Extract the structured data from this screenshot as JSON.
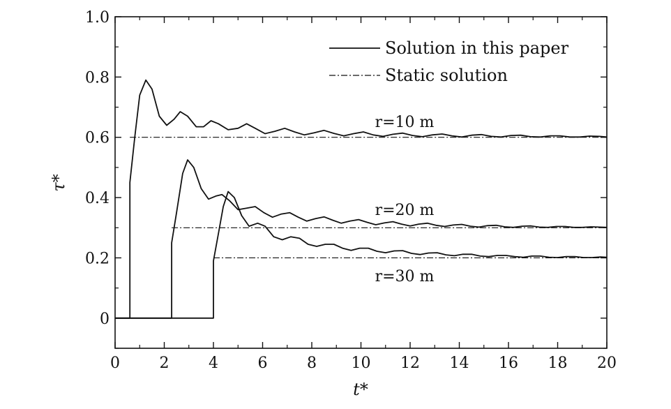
{
  "chart_data": {
    "type": "line",
    "title": "",
    "xlabel": "t*",
    "ylabel": "τ*",
    "xlim": [
      0,
      20
    ],
    "ylim": [
      -0.1,
      1.0
    ],
    "xticks": [
      "0",
      "2",
      "4",
      "6",
      "8",
      "10",
      "12",
      "14",
      "16",
      "18",
      "20"
    ],
    "yticks": [
      "0",
      "0.2",
      "0.4",
      "0.6",
      "0.8",
      "1.0"
    ],
    "grid": false,
    "legend": {
      "position": "top-right",
      "entries": [
        {
          "label": "Solution in this paper",
          "style": "solid"
        },
        {
          "label": "Static solution",
          "style": "dash-dot"
        }
      ]
    },
    "series": [
      {
        "label": "r=10 m",
        "annotation": "r=10 m",
        "arrival": 0.6,
        "static": 0.6,
        "points": [
          [
            0,
            0
          ],
          [
            0.6,
            0
          ],
          [
            0.6,
            0.45
          ],
          [
            0.8,
            0.6
          ],
          [
            1.0,
            0.74
          ],
          [
            1.25,
            0.79
          ],
          [
            1.5,
            0.76
          ],
          [
            1.8,
            0.67
          ],
          [
            2.1,
            0.64
          ],
          [
            2.4,
            0.66
          ],
          [
            2.65,
            0.685
          ],
          [
            2.95,
            0.67
          ],
          [
            3.3,
            0.635
          ],
          [
            3.6,
            0.635
          ],
          [
            3.9,
            0.655
          ],
          [
            4.2,
            0.645
          ],
          [
            4.6,
            0.625
          ],
          [
            5.0,
            0.63
          ],
          [
            5.35,
            0.645
          ],
          [
            5.7,
            0.63
          ],
          [
            6.1,
            0.612
          ],
          [
            6.5,
            0.62
          ],
          [
            6.9,
            0.63
          ],
          [
            7.3,
            0.618
          ],
          [
            7.7,
            0.608
          ],
          [
            8.1,
            0.615
          ],
          [
            8.5,
            0.623
          ],
          [
            8.9,
            0.613
          ],
          [
            9.3,
            0.605
          ],
          [
            9.7,
            0.612
          ],
          [
            10.1,
            0.618
          ],
          [
            10.5,
            0.608
          ],
          [
            10.9,
            0.603
          ],
          [
            11.3,
            0.61
          ],
          [
            11.7,
            0.614
          ],
          [
            12.1,
            0.606
          ],
          [
            12.5,
            0.602
          ],
          [
            12.9,
            0.608
          ],
          [
            13.3,
            0.611
          ],
          [
            13.7,
            0.605
          ],
          [
            14.1,
            0.601
          ],
          [
            14.5,
            0.607
          ],
          [
            14.9,
            0.609
          ],
          [
            15.3,
            0.603
          ],
          [
            15.7,
            0.601
          ],
          [
            16.1,
            0.606
          ],
          [
            16.5,
            0.607
          ],
          [
            16.9,
            0.602
          ],
          [
            17.3,
            0.601
          ],
          [
            17.7,
            0.605
          ],
          [
            18.1,
            0.605
          ],
          [
            18.5,
            0.601
          ],
          [
            18.9,
            0.601
          ],
          [
            19.3,
            0.604
          ],
          [
            19.7,
            0.603
          ],
          [
            20,
            0.601
          ]
        ]
      },
      {
        "label": "r=20 m",
        "annotation": "r=20 m",
        "arrival": 2.3,
        "static": 0.3,
        "points": [
          [
            0,
            0
          ],
          [
            2.3,
            0
          ],
          [
            2.3,
            0.25
          ],
          [
            2.5,
            0.35
          ],
          [
            2.75,
            0.48
          ],
          [
            2.95,
            0.525
          ],
          [
            3.2,
            0.5
          ],
          [
            3.5,
            0.43
          ],
          [
            3.8,
            0.395
          ],
          [
            4.1,
            0.405
          ],
          [
            4.35,
            0.41
          ],
          [
            4.65,
            0.39
          ],
          [
            5.0,
            0.36
          ],
          [
            5.35,
            0.365
          ],
          [
            5.7,
            0.37
          ],
          [
            6.05,
            0.35
          ],
          [
            6.4,
            0.335
          ],
          [
            6.75,
            0.345
          ],
          [
            7.1,
            0.35
          ],
          [
            7.45,
            0.335
          ],
          [
            7.8,
            0.322
          ],
          [
            8.15,
            0.33
          ],
          [
            8.5,
            0.336
          ],
          [
            8.85,
            0.325
          ],
          [
            9.2,
            0.315
          ],
          [
            9.55,
            0.322
          ],
          [
            9.9,
            0.327
          ],
          [
            10.25,
            0.318
          ],
          [
            10.6,
            0.31
          ],
          [
            10.95,
            0.316
          ],
          [
            11.3,
            0.32
          ],
          [
            11.65,
            0.312
          ],
          [
            12.0,
            0.306
          ],
          [
            12.35,
            0.312
          ],
          [
            12.7,
            0.315
          ],
          [
            13.05,
            0.308
          ],
          [
            13.4,
            0.304
          ],
          [
            13.75,
            0.309
          ],
          [
            14.1,
            0.311
          ],
          [
            14.45,
            0.305
          ],
          [
            14.8,
            0.302
          ],
          [
            15.15,
            0.307
          ],
          [
            15.5,
            0.308
          ],
          [
            15.85,
            0.303
          ],
          [
            16.2,
            0.301
          ],
          [
            16.55,
            0.305
          ],
          [
            16.9,
            0.306
          ],
          [
            17.25,
            0.302
          ],
          [
            17.6,
            0.301
          ],
          [
            17.95,
            0.304
          ],
          [
            18.3,
            0.304
          ],
          [
            18.65,
            0.301
          ],
          [
            19.0,
            0.301
          ],
          [
            19.35,
            0.303
          ],
          [
            19.7,
            0.302
          ],
          [
            20,
            0.301
          ]
        ]
      },
      {
        "label": "r=30 m",
        "annotation": "r=30 m",
        "arrival": 4.0,
        "static": 0.2,
        "points": [
          [
            0,
            0
          ],
          [
            4.0,
            0
          ],
          [
            4.0,
            0.19
          ],
          [
            4.2,
            0.28
          ],
          [
            4.4,
            0.37
          ],
          [
            4.6,
            0.42
          ],
          [
            4.85,
            0.4
          ],
          [
            5.15,
            0.34
          ],
          [
            5.45,
            0.305
          ],
          [
            5.8,
            0.315
          ],
          [
            6.1,
            0.305
          ],
          [
            6.45,
            0.27
          ],
          [
            6.8,
            0.26
          ],
          [
            7.15,
            0.27
          ],
          [
            7.5,
            0.265
          ],
          [
            7.85,
            0.245
          ],
          [
            8.2,
            0.238
          ],
          [
            8.55,
            0.245
          ],
          [
            8.9,
            0.245
          ],
          [
            9.25,
            0.232
          ],
          [
            9.6,
            0.225
          ],
          [
            9.95,
            0.232
          ],
          [
            10.3,
            0.232
          ],
          [
            10.65,
            0.222
          ],
          [
            11.0,
            0.217
          ],
          [
            11.35,
            0.223
          ],
          [
            11.7,
            0.224
          ],
          [
            12.05,
            0.215
          ],
          [
            12.4,
            0.211
          ],
          [
            12.75,
            0.216
          ],
          [
            13.1,
            0.217
          ],
          [
            13.45,
            0.21
          ],
          [
            13.8,
            0.207
          ],
          [
            14.15,
            0.212
          ],
          [
            14.5,
            0.212
          ],
          [
            14.85,
            0.206
          ],
          [
            15.2,
            0.204
          ],
          [
            15.55,
            0.208
          ],
          [
            15.9,
            0.208
          ],
          [
            16.25,
            0.204
          ],
          [
            16.6,
            0.202
          ],
          [
            16.95,
            0.206
          ],
          [
            17.3,
            0.206
          ],
          [
            17.65,
            0.202
          ],
          [
            18.0,
            0.201
          ],
          [
            18.35,
            0.204
          ],
          [
            18.7,
            0.204
          ],
          [
            19.05,
            0.201
          ],
          [
            19.4,
            0.201
          ],
          [
            19.75,
            0.203
          ],
          [
            20,
            0.202
          ]
        ]
      }
    ]
  },
  "colors": {
    "line": "#111111",
    "background": "#ffffff"
  }
}
